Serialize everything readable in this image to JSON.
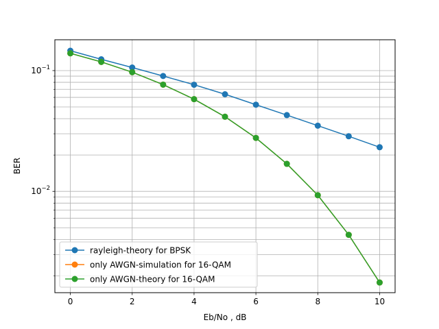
{
  "chart_data": {
    "type": "line",
    "title": "",
    "xlabel": "Eb/No , dB",
    "ylabel": "BER",
    "xlim": [
      -0.5,
      10.5
    ],
    "ylim": [
      0.00145,
      0.18
    ],
    "yscale": "log",
    "grid": true,
    "legend_position": "lower-left",
    "x_ticks": [
      0,
      2,
      4,
      6,
      8,
      10
    ],
    "y_ticks": [
      {
        "value": 0.1,
        "base": "10",
        "exp": "−1"
      },
      {
        "value": 0.01,
        "base": "10",
        "exp": "−2"
      }
    ],
    "x": [
      0,
      1,
      2,
      3,
      4,
      5,
      6,
      7,
      8,
      9,
      10
    ],
    "series": [
      {
        "name": "rayleigh-theory for BPSK",
        "color": "#1f77b4",
        "values": [
          0.146,
          0.124,
          0.106,
          0.0902,
          0.0764,
          0.0637,
          0.0522,
          0.0428,
          0.035,
          0.0286,
          0.0232
        ]
      },
      {
        "name": "only AWGN-simulation for 16-QAM",
        "color": "#ff7f0e",
        "values": [
          0.139,
          0.118,
          0.097,
          0.0765,
          0.058,
          0.0415,
          0.0277,
          0.0169,
          0.0093,
          0.00437,
          0.00176
        ]
      },
      {
        "name": "only AWGN-theory for 16-QAM",
        "color": "#2ca02c",
        "values": [
          0.139,
          0.118,
          0.097,
          0.0765,
          0.058,
          0.0415,
          0.0277,
          0.0169,
          0.0093,
          0.00437,
          0.00176
        ]
      }
    ]
  }
}
